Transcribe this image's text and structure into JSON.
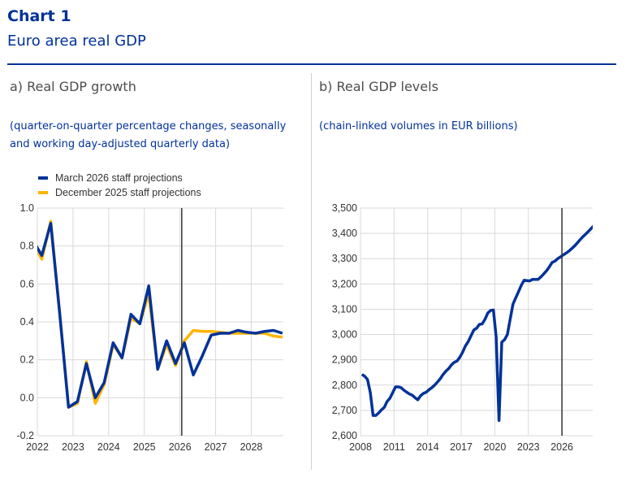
{
  "header": {
    "title": "Chart 1",
    "subtitle": "Euro area real GDP"
  },
  "colors": {
    "march2026": "#003299",
    "december2025": "#ffb400",
    "brand": "#003299",
    "grid": "#d9d9d9",
    "marker": "#333333"
  },
  "chart_data": [
    {
      "type": "line",
      "title": "a) Real GDP growth",
      "note": "(quarter-on-quarter percentage changes, seasonally and working day-adjusted quarterly data)",
      "xlim": [
        2022,
        2028.9
      ],
      "ylim": [
        -0.2,
        1.0
      ],
      "yticks": [
        "1.0",
        "0.8",
        "0.6",
        "0.4",
        "0.2",
        "0.0",
        "-0.2"
      ],
      "xticks": [
        "2022",
        "2023",
        "2024",
        "2025",
        "2026",
        "2027",
        "2028"
      ],
      "grid": true,
      "legend_placement": "top-left",
      "projection_marker": 2026.05,
      "x": [
        "2021Q4",
        "2022Q1",
        "2022Q2",
        "2022Q3",
        "2022Q4",
        "2023Q1",
        "2023Q2",
        "2023Q3",
        "2023Q4",
        "2024Q1",
        "2024Q2",
        "2024Q3",
        "2024Q4",
        "2025Q1",
        "2025Q2",
        "2025Q3",
        "2025Q4",
        "2026Q1",
        "2026Q2",
        "2026Q3",
        "2026Q4",
        "2027Q1",
        "2027Q2",
        "2027Q3",
        "2027Q4",
        "2028Q1",
        "2028Q2",
        "2028Q3",
        "2028Q4"
      ],
      "series": [
        {
          "name": "December 2025 staff projections",
          "color_key": "december2025",
          "values": [
            0.82,
            0.73,
            0.93,
            0.45,
            -0.05,
            -0.03,
            0.19,
            -0.03,
            0.07,
            0.28,
            0.21,
            0.42,
            0.39,
            0.55,
            0.15,
            0.28,
            0.17,
            0.3,
            0.355,
            0.35,
            0.35,
            0.345,
            0.34,
            0.34,
            0.34,
            0.34,
            0.34,
            0.325,
            0.32
          ]
        },
        {
          "name": "March 2026 staff projections",
          "color_key": "march2026",
          "values": [
            0.83,
            0.75,
            0.92,
            0.45,
            -0.05,
            -0.02,
            0.18,
            0.0,
            0.08,
            0.29,
            0.21,
            0.44,
            0.39,
            0.59,
            0.15,
            0.3,
            0.18,
            0.29,
            0.12,
            0.22,
            0.33,
            0.34,
            0.34,
            0.355,
            0.345,
            0.34,
            0.35,
            0.355,
            0.34
          ]
        }
      ]
    },
    {
      "type": "line",
      "title": "b) Real GDP levels",
      "note": "(chain-linked volumes in EUR billions)",
      "xlim": [
        2008,
        2028.75
      ],
      "ylim": [
        2600,
        3500
      ],
      "yticks": [
        "3,500",
        "3,400",
        "3,300",
        "3,200",
        "3,100",
        "3,000",
        "2,900",
        "2,800",
        "2,700",
        "2,600"
      ],
      "xticks": [
        "2008",
        "2011",
        "2014",
        "2017",
        "2020",
        "2023",
        "2026"
      ],
      "grid": true,
      "projection_marker": 2026.0,
      "x_start": "2008Q1",
      "series": [
        {
          "name": "March 2026 staff projections",
          "color_key": "march2026",
          "values": [
            2842,
            2835,
            2822,
            2770,
            2680,
            2680,
            2690,
            2702,
            2712,
            2735,
            2748,
            2770,
            2793,
            2793,
            2790,
            2780,
            2772,
            2765,
            2760,
            2750,
            2742,
            2758,
            2767,
            2772,
            2782,
            2790,
            2800,
            2812,
            2825,
            2842,
            2855,
            2865,
            2880,
            2890,
            2895,
            2910,
            2930,
            2955,
            2972,
            2995,
            3018,
            3025,
            3040,
            3042,
            3060,
            3085,
            3095,
            3097,
            2990,
            2660,
            2970,
            2980,
            3000,
            3060,
            3120,
            3145,
            3170,
            3195,
            3215,
            3213,
            3212,
            3218,
            3218,
            3218,
            3228,
            3240,
            3252,
            3268,
            3285,
            3290,
            3300,
            3307,
            3315,
            3322,
            3330,
            3340,
            3350,
            3362,
            3375,
            3387,
            3397,
            3408,
            3420,
            3432
          ]
        }
      ]
    }
  ]
}
